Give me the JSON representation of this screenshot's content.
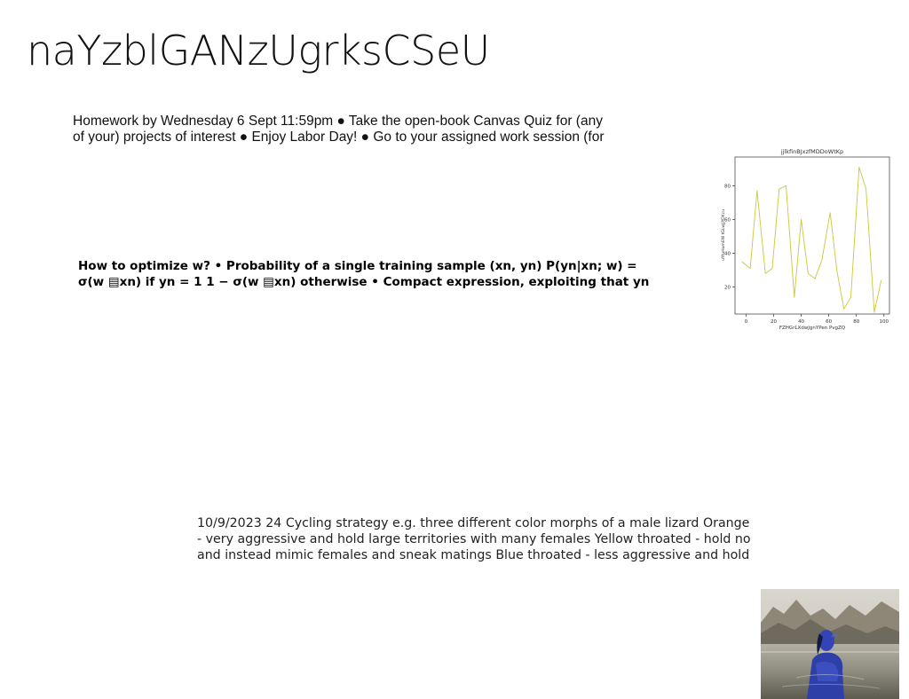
{
  "page": {
    "title": "naYzblGANzUgrksCSeU"
  },
  "text_blocks": [
    {
      "lines": [
        "Homework by Wednesday 6 Sept 11:59pm ● Take the open-book Canvas Quiz for (any",
        "of your) projects of interest ● Enjoy Labor Day! ● Go to your assigned work session (for"
      ]
    },
    {
      "lines": [
        "How to optimize w? • Probability of a single training sample (xn, yn) P(yn|xn; w) =",
        "σ(w ▤xn) if yn = 1 1 − σ(w ▤xn) otherwise • Compact expression, exploiting that yn"
      ]
    },
    {
      "lines": [
        "10/9/2023 24 Cycling strategy e.g. three different color morphs of a male lizard Orange",
        "- very aggressive and hold large territories with many females Yellow throated - hold no",
        "and instead mimic females and sneak matings Blue throated - less aggressive and hold"
      ]
    }
  ],
  "chart_data": {
    "type": "line",
    "title": "jjlkfinBJxzfMDDoWtKp",
    "xlabel": "FZHGrLXdwJgnYPen PvgZQ",
    "ylabel": "uYtuHumEW tGLwJjYOKcu",
    "xlim": [
      -8,
      104
    ],
    "ylim": [
      4,
      97
    ],
    "xticks": [
      0,
      20,
      40,
      60,
      80,
      100
    ],
    "yticks": [
      20,
      40,
      60,
      80
    ],
    "grid": false,
    "series": [
      {
        "color": "#c8c83a",
        "x": [
          -3,
          3,
          8,
          14,
          19,
          24,
          29,
          35,
          40,
          45,
          50,
          55,
          61,
          66,
          71,
          76,
          82,
          87,
          93,
          98
        ],
        "y": [
          35,
          31,
          77,
          28,
          31,
          78,
          80,
          14,
          60,
          28,
          25,
          36,
          64,
          29,
          7,
          14,
          91,
          78,
          5,
          24
        ]
      }
    ]
  },
  "image": {
    "name": "woman-in-infinity-pool-photo"
  }
}
